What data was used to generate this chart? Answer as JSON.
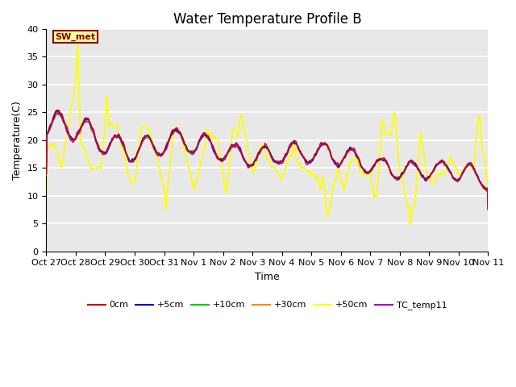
{
  "title": "Water Temperature Profile B",
  "xlabel": "Time",
  "ylabel": "Temperature(C)",
  "ylim": [
    0,
    40
  ],
  "yticks": [
    0,
    5,
    10,
    15,
    20,
    25,
    30,
    35,
    40
  ],
  "x_labels": [
    "Oct 27",
    "Oct 28",
    "Oct 29",
    "Oct 30",
    "Oct 31",
    "Nov 1",
    "Nov 2",
    "Nov 3",
    "Nov 4",
    "Nov 5",
    "Nov 6",
    "Nov 7",
    "Nov 8",
    "Nov 9",
    "Nov 10",
    "Nov 11"
  ],
  "series_colors": {
    "0cm": "#cc0000",
    "+5cm": "#0000cc",
    "+10cm": "#00cc00",
    "+30cm": "#ff8800",
    "+50cm": "#ffff00",
    "TC_temp11": "#9900cc"
  },
  "sw_met_box": {
    "text": "SW_met",
    "facecolor": "#ffff99",
    "edgecolor": "#880000",
    "textcolor": "#880000",
    "fontsize": 8,
    "fontweight": "bold"
  },
  "background_color": "#e8e8e8",
  "grid_color": "#ffffff",
  "title_fontsize": 12,
  "axis_fontsize": 9,
  "tick_fontsize": 8,
  "legend_fontsize": 8,
  "linewidth": 1.0
}
